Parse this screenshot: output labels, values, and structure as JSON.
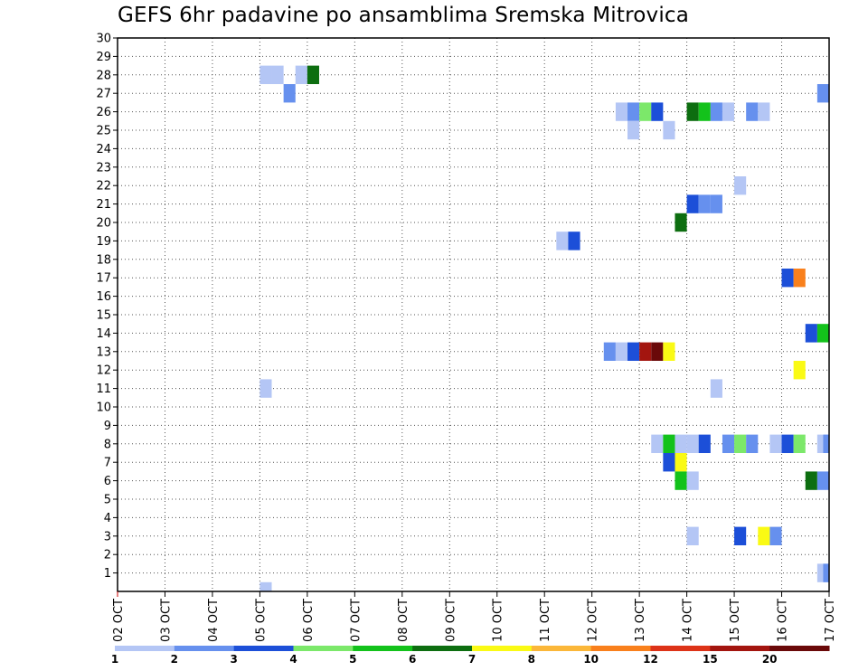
{
  "title": "GEFS 6hr padavine po ansamblima Sremska Mitrovica",
  "chart_data": {
    "type": "heatmap",
    "x_labels": [
      "02 OCT",
      "03 OCT",
      "04 OCT",
      "05 OCT",
      "06 OCT",
      "07 OCT",
      "08 OCT",
      "09 OCT",
      "10 OCT",
      "11 OCT",
      "12 OCT",
      "13 OCT",
      "14 OCT",
      "15 OCT",
      "16 OCT",
      "17 OCT"
    ],
    "y_labels": [
      "1",
      "2",
      "3",
      "4",
      "5",
      "6",
      "7",
      "8",
      "9",
      "10",
      "11",
      "12",
      "13",
      "14",
      "15",
      "16",
      "17",
      "18",
      "19",
      "20",
      "21",
      "22",
      "23",
      "24",
      "25",
      "26",
      "27",
      "28",
      "29",
      "30"
    ],
    "xlim": [
      0,
      60
    ],
    "ylim": [
      0,
      30
    ],
    "grid": true,
    "colorbar": {
      "colors": [
        "#b4c6f5",
        "#6690ee",
        "#1c4fd8",
        "#7ce86a",
        "#13c21b",
        "#0d6e10",
        "#fafa14",
        "#fbb739",
        "#f9801c",
        "#dd3318",
        "#a3150f",
        "#6a0909"
      ],
      "labels": [
        "1",
        "2",
        "3",
        "4",
        "5",
        "6",
        "7",
        "8",
        "10",
        "12",
        "15",
        "20"
      ]
    },
    "cells": [
      [
        12.5,
        28,
        1
      ],
      [
        13.5,
        28,
        1
      ],
      [
        15.5,
        28,
        1
      ],
      [
        16.5,
        28,
        6
      ],
      [
        14.5,
        27,
        2
      ],
      [
        59.5,
        27,
        2
      ],
      [
        42.5,
        26,
        1
      ],
      [
        43.5,
        26,
        2
      ],
      [
        44.5,
        26,
        4
      ],
      [
        45.5,
        26,
        3
      ],
      [
        48.5,
        26,
        6
      ],
      [
        49.5,
        26,
        5
      ],
      [
        50.5,
        26,
        2
      ],
      [
        51.5,
        26,
        1
      ],
      [
        53.5,
        26,
        2
      ],
      [
        54.5,
        26,
        1
      ],
      [
        43.5,
        25,
        1
      ],
      [
        46.5,
        25,
        1
      ],
      [
        52.5,
        22,
        1
      ],
      [
        48.5,
        21,
        3
      ],
      [
        49.5,
        21,
        2
      ],
      [
        50.5,
        21,
        2
      ],
      [
        47.5,
        20,
        6
      ],
      [
        37.5,
        19,
        1
      ],
      [
        38.5,
        19,
        3
      ],
      [
        56.5,
        17,
        3
      ],
      [
        57.5,
        17,
        9
      ],
      [
        58.5,
        14,
        3
      ],
      [
        59.5,
        14,
        5
      ],
      [
        41.5,
        13,
        2
      ],
      [
        42.5,
        13,
        1
      ],
      [
        43.5,
        13,
        3
      ],
      [
        44.5,
        13,
        11
      ],
      [
        45.5,
        13,
        12
      ],
      [
        46.5,
        13,
        7
      ],
      [
        57.5,
        12,
        7
      ],
      [
        12.5,
        11,
        1
      ],
      [
        50.5,
        11,
        1
      ],
      [
        45.5,
        8,
        1
      ],
      [
        46.5,
        8,
        5
      ],
      [
        47.5,
        8,
        1
      ],
      [
        48.5,
        8,
        1
      ],
      [
        49.5,
        8,
        3
      ],
      [
        51.5,
        8,
        2
      ],
      [
        52.5,
        8,
        4
      ],
      [
        53.5,
        8,
        2
      ],
      [
        55.5,
        8,
        1
      ],
      [
        56.5,
        8,
        3
      ],
      [
        57.5,
        8,
        4
      ],
      [
        59.5,
        8,
        1
      ],
      [
        60,
        8,
        2
      ],
      [
        46.5,
        7,
        3
      ],
      [
        47.5,
        7,
        7
      ],
      [
        47.5,
        6,
        5
      ],
      [
        48.5,
        6,
        1
      ],
      [
        58.5,
        6,
        6
      ],
      [
        59.5,
        6,
        2
      ],
      [
        48.5,
        3,
        1
      ],
      [
        52.5,
        3,
        3
      ],
      [
        54.5,
        3,
        7
      ],
      [
        55.5,
        3,
        2
      ],
      [
        59.5,
        1,
        1
      ],
      [
        60,
        1,
        2
      ],
      [
        12.5,
        0,
        1
      ]
    ]
  }
}
